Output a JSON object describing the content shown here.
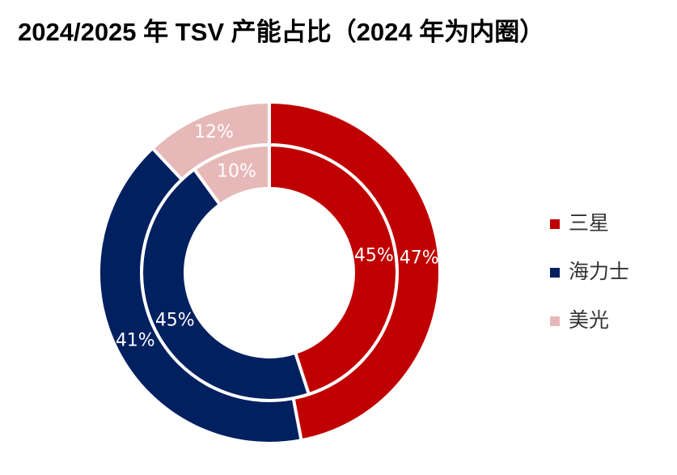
{
  "chart_data": {
    "type": "donut",
    "title": "2024/2025 年 TSV 产能占比（2024 年为内圈）",
    "categories": [
      "三星",
      "海力士",
      "美光"
    ],
    "colors": [
      "#c00000",
      "#002060",
      "#e6b9b8"
    ],
    "series": [
      {
        "values": [
          45,
          45,
          10
        ],
        "value_labels": [
          "45%",
          "45%",
          "10%"
        ]
      },
      {
        "values": [
          47,
          41,
          12
        ],
        "value_labels": [
          "47%",
          "41%",
          "12%"
        ]
      }
    ]
  }
}
